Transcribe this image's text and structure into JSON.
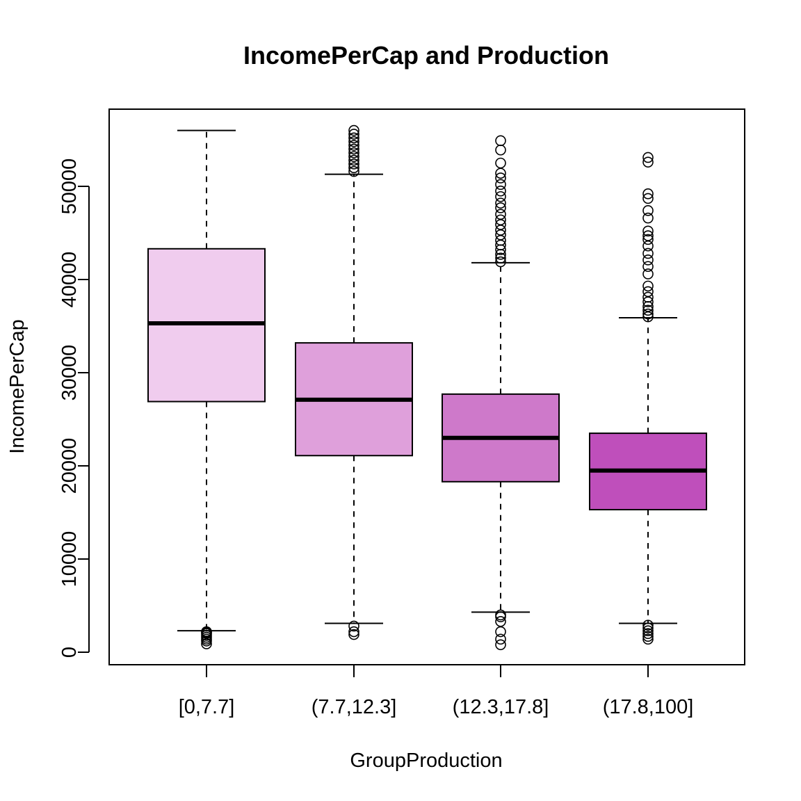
{
  "chart_data": {
    "type": "box",
    "title": "IncomePerCap and Production",
    "xlabel": "GroupProduction",
    "ylabel": "IncomePerCap",
    "ylim": [
      -1200,
      58500
    ],
    "yticks": [
      0,
      10000,
      20000,
      30000,
      40000,
      50000
    ],
    "ytick_labels": [
      "0",
      "10000",
      "20000",
      "30000",
      "40000",
      "50000"
    ],
    "categories": [
      "[0,7.7]",
      "(7.7,12.3]",
      "(12.3,17.8]",
      "(17.8,100]"
    ],
    "fills": [
      "#F0CCEE",
      "#DFA0DB",
      "#CE79CA",
      "#BF4FBB"
    ],
    "boxes": [
      {
        "whisker_low": 2300,
        "q1": 26900,
        "median": 35300,
        "q3": 43300,
        "whisker_high": 56000,
        "outliers": [
          900,
          1200,
          1400,
          1600,
          1800,
          2000,
          2100,
          2200
        ]
      },
      {
        "whisker_low": 3100,
        "q1": 21100,
        "median": 27100,
        "q3": 33200,
        "whisker_high": 51300,
        "outliers": [
          1900,
          2200,
          2800,
          51600,
          52000,
          52400,
          52800,
          53200,
          53600,
          54000,
          54400,
          54800,
          55200,
          55600,
          56000
        ]
      },
      {
        "whisker_low": 4300,
        "q1": 18300,
        "median": 23000,
        "q3": 27700,
        "whisker_high": 41800,
        "outliers": [
          800,
          1400,
          2200,
          3300,
          3800,
          4000,
          41900,
          42300,
          42700,
          43200,
          43700,
          44200,
          44800,
          45300,
          45900,
          46400,
          47000,
          47700,
          48200,
          48900,
          49500,
          50200,
          50900,
          51400,
          52500,
          53900,
          54900
        ]
      },
      {
        "whisker_low": 3100,
        "q1": 15300,
        "median": 19500,
        "q3": 23500,
        "whisker_high": 35900,
        "outliers": [
          1400,
          1700,
          2000,
          2300,
          2600,
          2900,
          36000,
          36300,
          36700,
          37100,
          37600,
          38100,
          38700,
          39300,
          40600,
          41400,
          42100,
          42800,
          43600,
          44300,
          44700,
          45200,
          46600,
          47400,
          48700,
          49200,
          52600,
          53100
        ]
      }
    ]
  }
}
